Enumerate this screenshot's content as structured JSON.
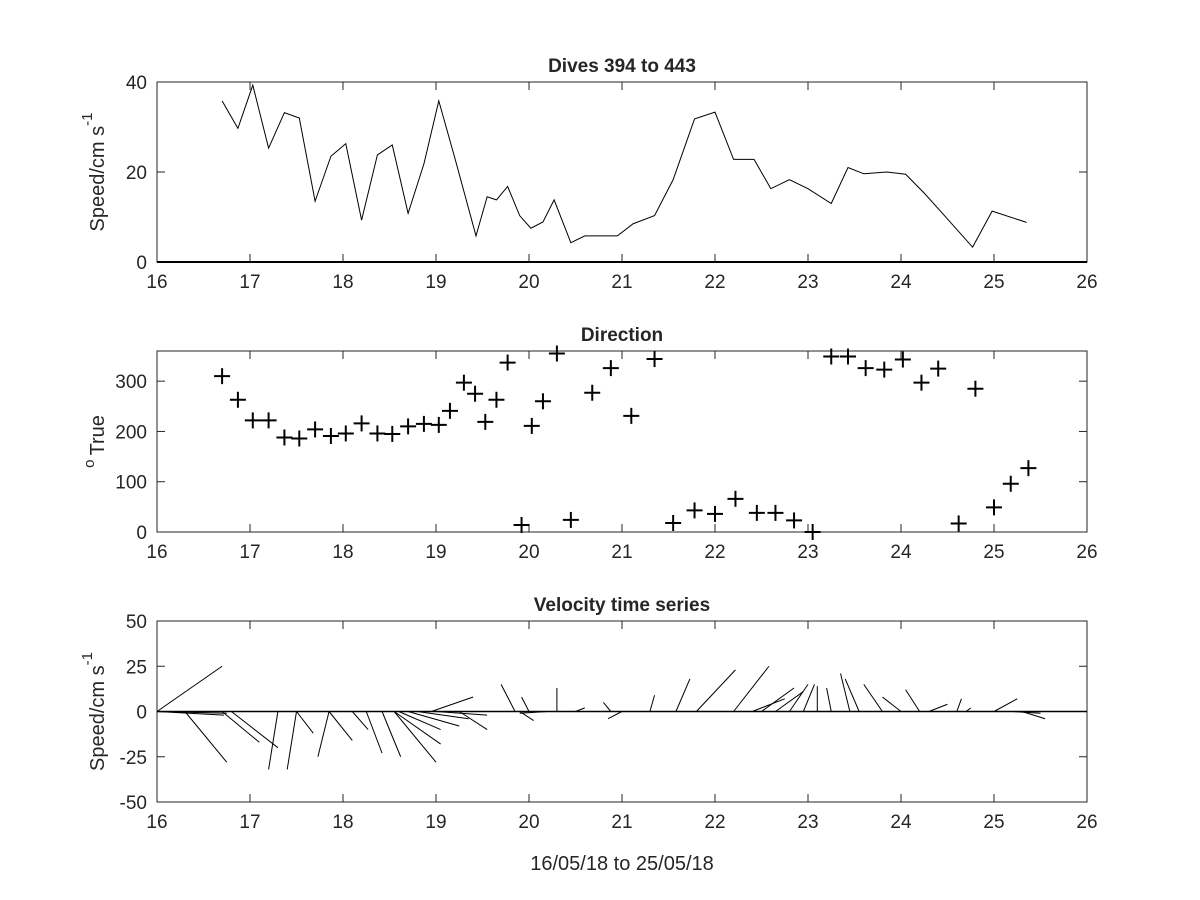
{
  "chart_data": [
    {
      "type": "line",
      "title": "Dives 394 to 443",
      "ylabel": "Speed/cm s",
      "ylabel_sup": "-1",
      "xlim": [
        16,
        26
      ],
      "ylim": [
        0,
        40
      ],
      "xticks": [
        16,
        17,
        18,
        19,
        20,
        21,
        22,
        23,
        24,
        25,
        26
      ],
      "yticks": [
        0,
        20,
        40
      ],
      "grid": false,
      "x": [
        16.7,
        16.87,
        17.03,
        17.2,
        17.37,
        17.53,
        17.7,
        17.87,
        18.03,
        18.2,
        18.37,
        18.53,
        18.7,
        18.87,
        19.03,
        19.2,
        19.43,
        19.55,
        19.65,
        19.77,
        19.9,
        20.02,
        20.15,
        20.27,
        20.45,
        20.6,
        20.73,
        20.95,
        21.12,
        21.35,
        21.55,
        21.78,
        22.0,
        22.2,
        22.42,
        22.6,
        22.8,
        23.0,
        23.25,
        23.43,
        23.6,
        23.85,
        24.05,
        24.25,
        24.45,
        24.77,
        24.98,
        25.35
      ],
      "values": [
        35.8,
        29.7,
        39.3,
        25.3,
        33.2,
        32.0,
        13.5,
        23.5,
        26.3,
        9.3,
        23.8,
        26.0,
        10.8,
        21.8,
        35.8,
        23.3,
        5.8,
        14.5,
        13.8,
        16.8,
        10.3,
        7.5,
        8.9,
        13.8,
        4.3,
        5.8,
        5.8,
        5.8,
        8.5,
        10.3,
        18.3,
        31.8,
        33.3,
        22.8,
        22.8,
        16.3,
        18.3,
        16.3,
        13.0,
        21.0,
        19.6,
        20.0,
        19.5,
        15.3,
        10.7,
        3.3,
        11.3,
        8.8
      ],
      "color": "#000000"
    },
    {
      "type": "scatter",
      "title": "Direction",
      "ylabel": "True",
      "ylabel_prefix": "o",
      "xlim": [
        16,
        26
      ],
      "ylim": [
        0,
        360
      ],
      "xticks": [
        16,
        17,
        18,
        19,
        20,
        21,
        22,
        23,
        24,
        25,
        26
      ],
      "yticks": [
        0,
        100,
        200,
        300
      ],
      "grid": false,
      "marker": "+",
      "x": [
        16.7,
        16.87,
        17.03,
        17.2,
        17.37,
        17.53,
        17.7,
        17.87,
        18.03,
        18.2,
        18.37,
        18.53,
        18.7,
        18.87,
        19.03,
        19.15,
        19.3,
        19.42,
        19.53,
        19.65,
        19.77,
        19.92,
        20.03,
        20.15,
        20.3,
        20.45,
        20.68,
        20.88,
        21.1,
        21.35,
        21.55,
        21.78,
        22.0,
        22.22,
        22.45,
        22.65,
        22.85,
        23.05,
        23.25,
        23.43,
        23.62,
        23.82,
        24.02,
        24.22,
        24.4,
        24.62,
        24.8,
        25.0,
        25.18,
        25.37
      ],
      "values": [
        310,
        263,
        222,
        222,
        188,
        186,
        204,
        191,
        196,
        216,
        196,
        195,
        210,
        215,
        213,
        241,
        297,
        275,
        219,
        263,
        337,
        14,
        211,
        260,
        355,
        24,
        277,
        326,
        231,
        344,
        18,
        43,
        36,
        66,
        38,
        38,
        23,
        0,
        349,
        349,
        326,
        323,
        343,
        297,
        325,
        17,
        285,
        49,
        96,
        127
      ],
      "color": "#000000"
    },
    {
      "type": "line",
      "subtype": "stick",
      "title": "Velocity time series",
      "xlabel": "16/05/18 to 25/05/18",
      "ylabel": "Speed/cm s",
      "ylabel_sup": "-1",
      "xlim": [
        16,
        26
      ],
      "ylim": [
        -50,
        50
      ],
      "xticks": [
        16,
        17,
        18,
        19,
        20,
        21,
        22,
        23,
        24,
        25,
        26
      ],
      "yticks": [
        -50,
        -25,
        0,
        25,
        50
      ],
      "grid": false,
      "sticks": [
        {
          "x": 16.0,
          "u": 0.7,
          "v": 25
        },
        {
          "x": 16.0,
          "u": 0.72,
          "v": -2
        },
        {
          "x": 16.0,
          "u": 0.75,
          "v": -1
        },
        {
          "x": 16.3,
          "u": 0.45,
          "v": -28
        },
        {
          "x": 16.7,
          "u": 0.4,
          "v": -17
        },
        {
          "x": 16.8,
          "u": 0.5,
          "v": -20
        },
        {
          "x": 17.3,
          "u": -0.1,
          "v": -32
        },
        {
          "x": 17.5,
          "u": -0.1,
          "v": -32
        },
        {
          "x": 17.5,
          "u": 0.18,
          "v": -12
        },
        {
          "x": 17.85,
          "u": -0.12,
          "v": -25
        },
        {
          "x": 17.85,
          "u": 0.25,
          "v": -16
        },
        {
          "x": 18.1,
          "u": 0.17,
          "v": -10
        },
        {
          "x": 18.25,
          "u": 0.17,
          "v": -23
        },
        {
          "x": 18.42,
          "u": 0.2,
          "v": -25
        },
        {
          "x": 18.55,
          "u": 0.45,
          "v": -28
        },
        {
          "x": 18.55,
          "u": 0.5,
          "v": -18
        },
        {
          "x": 18.6,
          "u": 0.45,
          "v": -10
        },
        {
          "x": 18.7,
          "u": 0.55,
          "v": -8
        },
        {
          "x": 18.8,
          "u": 0.55,
          "v": -4
        },
        {
          "x": 19.0,
          "u": 0.55,
          "v": -2
        },
        {
          "x": 18.95,
          "u": 0.45,
          "v": 8
        },
        {
          "x": 19.25,
          "u": 0.3,
          "v": -10
        },
        {
          "x": 19.4,
          "u": 0.25,
          "v": 0
        },
        {
          "x": 19.85,
          "u": -0.15,
          "v": 15
        },
        {
          "x": 19.9,
          "u": 0.15,
          "v": -5
        },
        {
          "x": 20.0,
          "u": -0.08,
          "v": 8
        },
        {
          "x": 20.2,
          "u": -0.3,
          "v": -1
        },
        {
          "x": 20.3,
          "u": 0.0,
          "v": 13
        },
        {
          "x": 20.5,
          "u": 0.1,
          "v": 2
        },
        {
          "x": 20.88,
          "u": -0.08,
          "v": 5
        },
        {
          "x": 21.0,
          "u": -0.15,
          "v": -4
        },
        {
          "x": 21.3,
          "u": 0.05,
          "v": 9
        },
        {
          "x": 21.58,
          "u": 0.15,
          "v": 18
        },
        {
          "x": 21.8,
          "u": 0.42,
          "v": 23
        },
        {
          "x": 22.2,
          "u": 0.38,
          "v": 25
        },
        {
          "x": 22.4,
          "u": 0.35,
          "v": 7
        },
        {
          "x": 22.5,
          "u": 0.35,
          "v": 13
        },
        {
          "x": 22.65,
          "u": 0.3,
          "v": 11
        },
        {
          "x": 22.8,
          "u": 0.2,
          "v": 15
        },
        {
          "x": 22.95,
          "u": 0.12,
          "v": 15
        },
        {
          "x": 23.1,
          "u": 0.0,
          "v": 14
        },
        {
          "x": 23.25,
          "u": -0.05,
          "v": 13
        },
        {
          "x": 23.45,
          "u": -0.1,
          "v": 21
        },
        {
          "x": 23.55,
          "u": -0.15,
          "v": 18
        },
        {
          "x": 23.8,
          "u": -0.2,
          "v": 15
        },
        {
          "x": 24.0,
          "u": -0.2,
          "v": 8
        },
        {
          "x": 24.2,
          "u": -0.15,
          "v": 12
        },
        {
          "x": 24.3,
          "u": 0.2,
          "v": 4
        },
        {
          "x": 24.6,
          "u": 0.05,
          "v": 7
        },
        {
          "x": 24.7,
          "u": 0.05,
          "v": 2
        },
        {
          "x": 25.0,
          "u": 0.25,
          "v": 7
        },
        {
          "x": 25.2,
          "u": 0.3,
          "v": -1
        },
        {
          "x": 25.3,
          "u": 0.25,
          "v": -4
        }
      ],
      "color": "#000000"
    }
  ]
}
